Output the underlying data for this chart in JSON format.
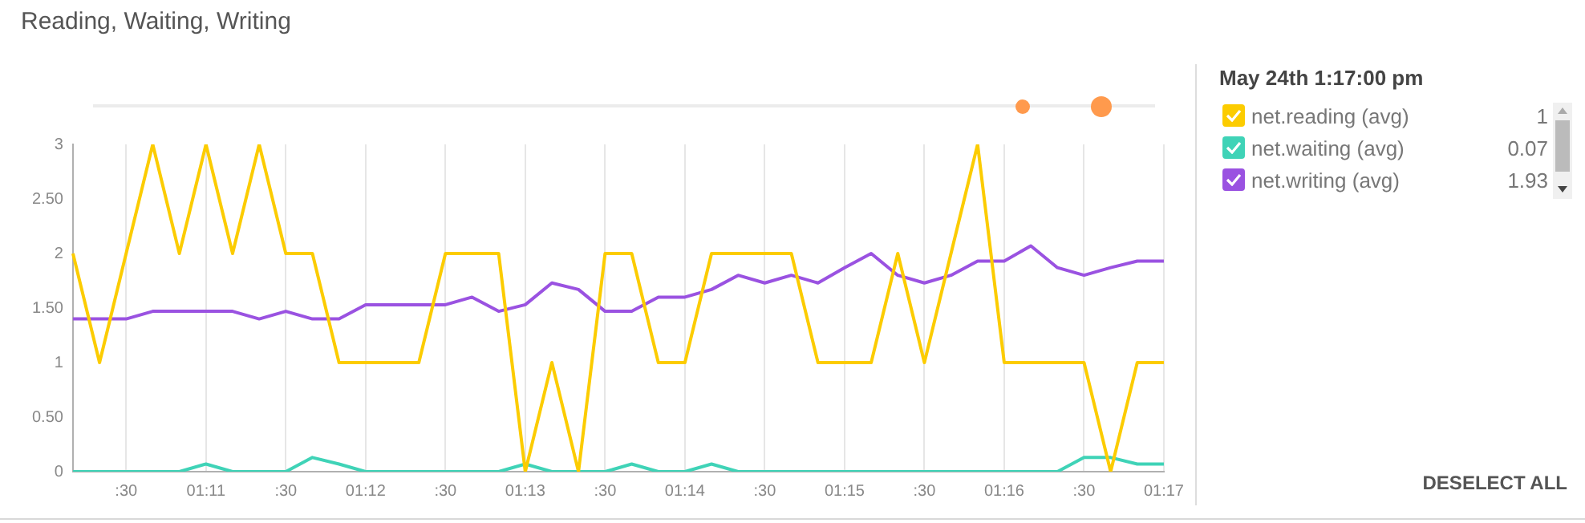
{
  "chart_data": {
    "type": "line",
    "title": "Reading, Waiting, Writing",
    "legend_title": "May 24th 1:17:00 pm",
    "categories": [
      null,
      null,
      ":30",
      null,
      null,
      "01:11",
      null,
      null,
      ":30",
      null,
      null,
      "01:12",
      null,
      null,
      ":30",
      null,
      null,
      "01:13",
      null,
      null,
      ":30",
      null,
      null,
      "01:14",
      null,
      null,
      ":30",
      null,
      null,
      "01:15",
      null,
      null,
      ":30",
      null,
      null,
      "01:16",
      null,
      null,
      ":30",
      null,
      null,
      "01:17"
    ],
    "series": [
      {
        "name": "net.reading (avg)",
        "color": "#fccc00",
        "values": [
          2,
          1,
          2,
          3,
          2,
          3,
          2,
          3,
          2,
          2,
          1,
          1,
          1,
          1,
          2,
          2,
          2,
          0,
          1,
          0,
          2,
          2,
          1,
          1,
          2,
          2,
          2,
          2,
          1,
          1,
          1,
          2,
          1,
          2,
          3,
          1,
          1,
          1,
          1,
          0,
          1,
          1
        ]
      },
      {
        "name": "net.waiting (avg)",
        "color": "#3fd3b7",
        "values": [
          0,
          0,
          0,
          0,
          0,
          0.07,
          0,
          0,
          0,
          0.13,
          0.07,
          0,
          0,
          0,
          0,
          0,
          0,
          0.07,
          0,
          0,
          0,
          0.07,
          0,
          0,
          0.07,
          0,
          0,
          0,
          0,
          0,
          0,
          0,
          0,
          0,
          0,
          0,
          0,
          0,
          0.13,
          0.13,
          0.07,
          0.07
        ]
      },
      {
        "name": "net.writing (avg)",
        "color": "#9a52e1",
        "values": [
          1.4,
          1.4,
          1.4,
          1.47,
          1.47,
          1.47,
          1.47,
          1.4,
          1.47,
          1.4,
          1.4,
          1.53,
          1.53,
          1.53,
          1.53,
          1.6,
          1.47,
          1.53,
          1.73,
          1.67,
          1.47,
          1.47,
          1.6,
          1.6,
          1.67,
          1.8,
          1.73,
          1.8,
          1.73,
          1.87,
          2,
          1.8,
          1.73,
          1.8,
          1.93,
          1.93,
          2.07,
          1.87,
          1.8,
          1.87,
          1.93,
          1.93
        ]
      }
    ],
    "ylim": [
      0,
      3
    ],
    "yticks": [
      0,
      {
        "value": 0.5,
        "label": "0.50"
      },
      1,
      {
        "value": 1.5,
        "label": "1.50"
      },
      2,
      {
        "value": 2.5,
        "label": "2.50"
      },
      3
    ],
    "grid": "x",
    "legend": "right",
    "marker": "none",
    "line_style": "solid",
    "annotations": [
      "DESELECT ALL",
      "1",
      "0.07",
      "1.93"
    ]
  }
}
